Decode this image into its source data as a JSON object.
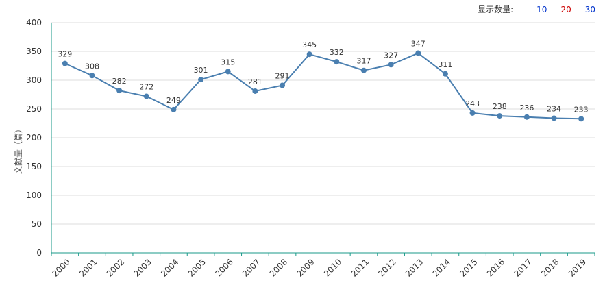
{
  "count_selector": {
    "label": "显示数量:",
    "options": [
      {
        "text": "10",
        "color": "#0033cc"
      },
      {
        "text": "20",
        "color": "#cc0000"
      },
      {
        "text": "30",
        "color": "#0033cc"
      }
    ]
  },
  "chart_data": {
    "type": "line",
    "categories": [
      "2000",
      "2001",
      "2002",
      "2003",
      "2004",
      "2005",
      "2006",
      "2007",
      "2008",
      "2009",
      "2010",
      "2011",
      "2012",
      "2013",
      "2014",
      "2015",
      "2016",
      "2017",
      "2018",
      "2019"
    ],
    "series": [
      {
        "values": [
          329,
          308,
          282,
          272,
          249,
          301,
          315,
          281,
          291,
          345,
          332,
          317,
          327,
          347,
          311,
          243,
          238,
          236,
          234,
          233
        ],
        "color": "#4a7fb0"
      }
    ],
    "ylabel": "文献量（篇）",
    "ylim": [
      0,
      400
    ],
    "yticks": [
      0,
      50,
      100,
      150,
      200,
      250,
      300,
      350,
      400
    ],
    "grid": true,
    "axis_color": "#1a9a8a"
  }
}
